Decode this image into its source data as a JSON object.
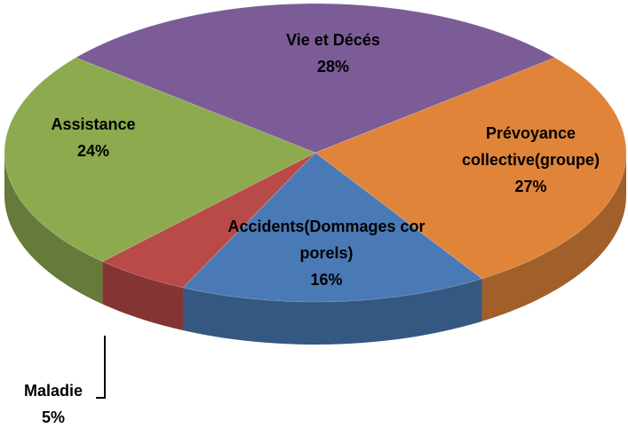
{
  "chart_data": {
    "type": "pie3d",
    "categories": [
      "Vie et Décés",
      "Prévoyance collective(groupe)",
      "Accidents(Dommages corporels)",
      "Maladie",
      "Assistance"
    ],
    "values": [
      28,
      27,
      16,
      5,
      24
    ],
    "value_labels": [
      "28%",
      "27%",
      "16%",
      "5%",
      "24%"
    ],
    "colors": [
      "#7b5c96",
      "#e0843a",
      "#4a7ab5",
      "#b84a47",
      "#8daa4f"
    ]
  }
}
